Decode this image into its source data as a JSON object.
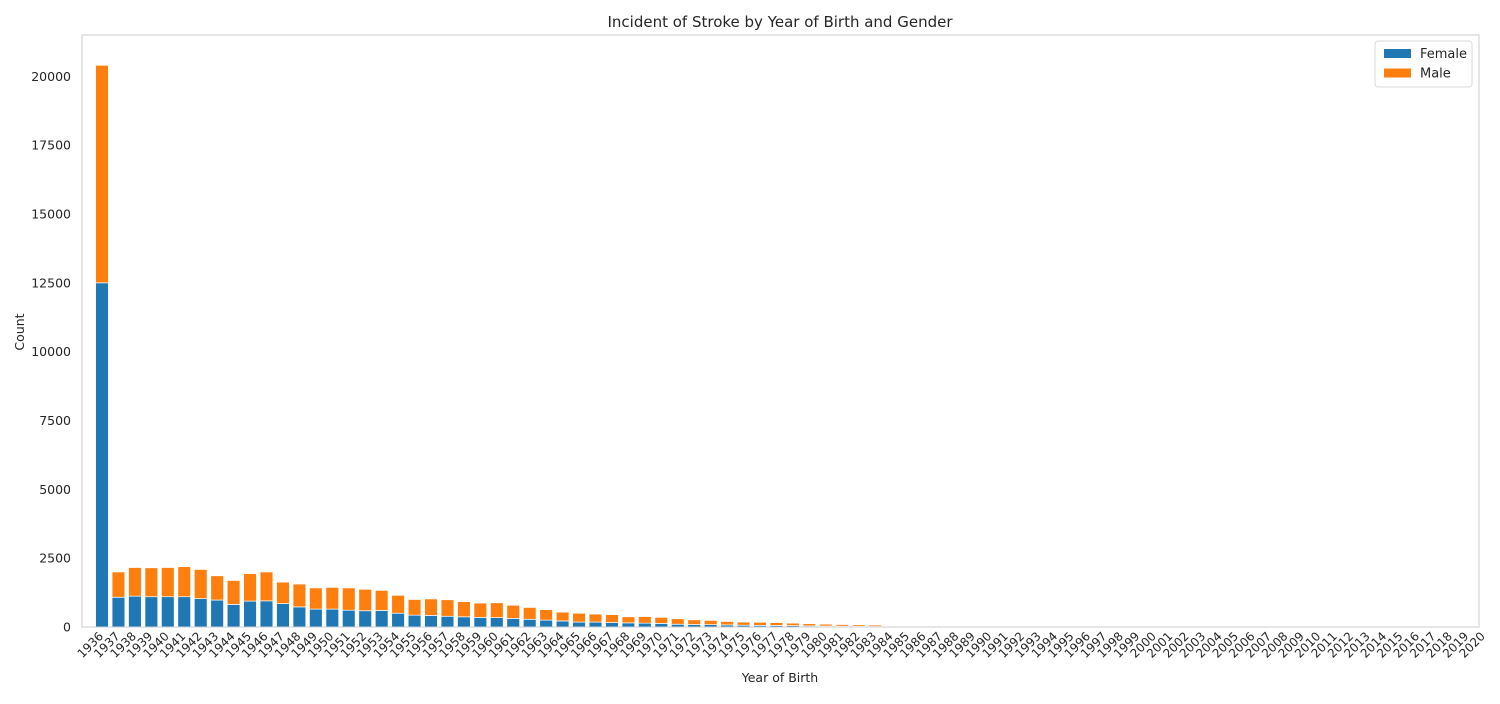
{
  "chart_data": {
    "type": "bar",
    "stacked": true,
    "title": "Incident of Stroke by Year of Birth and Gender",
    "xlabel": "Year of Birth",
    "ylabel": "Count",
    "ylim": [
      0,
      21500
    ],
    "yticks": [
      0,
      2500,
      5000,
      7500,
      10000,
      12500,
      15000,
      17500,
      20000
    ],
    "grid": false,
    "legend_position": "top-right",
    "categories": [
      "1936",
      "1937",
      "1938",
      "1939",
      "1940",
      "1941",
      "1942",
      "1943",
      "1944",
      "1945",
      "1946",
      "1947",
      "1948",
      "1949",
      "1950",
      "1951",
      "1952",
      "1953",
      "1954",
      "1955",
      "1956",
      "1957",
      "1958",
      "1959",
      "1960",
      "1961",
      "1962",
      "1963",
      "1964",
      "1965",
      "1966",
      "1967",
      "1968",
      "1969",
      "1970",
      "1971",
      "1972",
      "1973",
      "1974",
      "1975",
      "1976",
      "1977",
      "1978",
      "1979",
      "1980",
      "1981",
      "1982",
      "1983",
      "1984",
      "1985",
      "1986",
      "1987",
      "1988",
      "1989",
      "1990",
      "1991",
      "1992",
      "1993",
      "1994",
      "1995",
      "1996",
      "1997",
      "1998",
      "1999",
      "2000",
      "2001",
      "2002",
      "2003",
      "2004",
      "2005",
      "2006",
      "2007",
      "2008",
      "2009",
      "2010",
      "2011",
      "2012",
      "2013",
      "2014",
      "2015",
      "2016",
      "2017",
      "2018",
      "2019",
      "2020"
    ],
    "series": [
      {
        "name": "Female",
        "color": "#1f77b4",
        "values": [
          12500,
          1080,
          1120,
          1100,
          1100,
          1100,
          1030,
          980,
          820,
          940,
          950,
          850,
          730,
          650,
          650,
          610,
          590,
          600,
          500,
          430,
          420,
          390,
          370,
          350,
          340,
          310,
          280,
          250,
          220,
          180,
          180,
          160,
          150,
          140,
          130,
          100,
          90,
          85,
          75,
          65,
          60,
          55,
          50,
          40,
          35,
          30,
          25,
          20,
          0,
          0,
          0,
          0,
          0,
          0,
          0,
          0,
          0,
          0,
          0,
          0,
          0,
          0,
          0,
          0,
          0,
          0,
          0,
          0,
          0,
          0,
          0,
          0,
          0,
          0,
          0,
          0,
          0,
          0,
          0,
          0,
          0,
          0,
          0,
          0,
          0
        ]
      },
      {
        "name": "Male",
        "color": "#ff7f0e",
        "values": [
          7900,
          920,
          1040,
          1050,
          1060,
          1090,
          1060,
          880,
          870,
          1000,
          1050,
          780,
          830,
          770,
          790,
          810,
          780,
          730,
          650,
          570,
          600,
          600,
          550,
          520,
          540,
          480,
          430,
          380,
          320,
          320,
          290,
          290,
          220,
          240,
          220,
          200,
          170,
          155,
          125,
          115,
          110,
          105,
          90,
          80,
          70,
          60,
          55,
          50,
          0,
          0,
          0,
          0,
          0,
          0,
          0,
          0,
          0,
          0,
          0,
          0,
          0,
          0,
          0,
          0,
          0,
          0,
          0,
          0,
          0,
          0,
          0,
          0,
          0,
          0,
          0,
          0,
          0,
          0,
          0,
          0,
          0,
          0,
          0,
          0,
          0
        ]
      }
    ]
  }
}
